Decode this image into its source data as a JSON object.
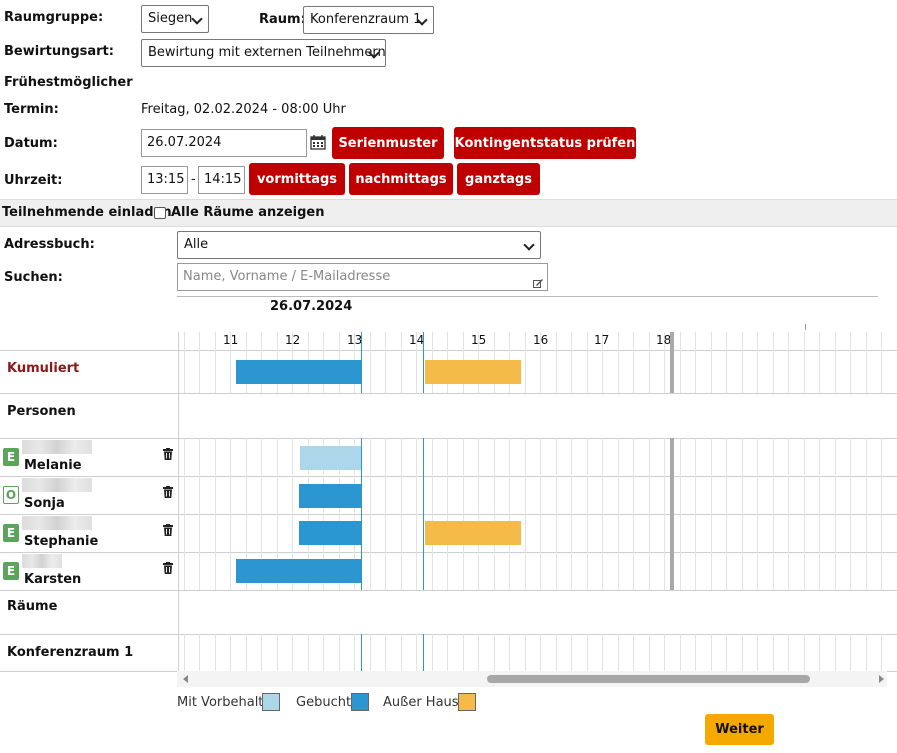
{
  "form": {
    "raumgruppe_label": "Raumgruppe:",
    "raumgruppe_value": "Siegen",
    "raum_label": "Raum:",
    "raum_value": "Konferenzraum 1",
    "bewirtung_label": "Bewirtungsart:",
    "bewirtung_value": "Bewirtung mit externen Teilnehmern",
    "fruehest_label": "Frühestmöglicher",
    "termin_label": "Termin:",
    "termin_value": "Freitag, 02.02.2024 - 08:00 Uhr",
    "datum_label": "Datum:",
    "datum_value": "26.07.2024",
    "uhrzeit_label": "Uhrzeit:",
    "time_from": "13:15",
    "time_sep": "-",
    "time_to": "14:15"
  },
  "buttons": {
    "serienmuster": "Serienmuster",
    "kontingent": "Kontingentstatus prüfen",
    "vormittags": "vormittags",
    "nachmittags": "nachmittags",
    "ganztags": "ganztags",
    "weiter": "Weiter"
  },
  "invite": {
    "title": "Teilnehmende einladen",
    "checkbox_label": "Alle Räume anzeigen",
    "adressbuch_label": "Adressbuch:",
    "adressbuch_value": "Alle",
    "suchen_label": "Suchen:",
    "suchen_placeholder": "Name, Vorname / E-Mailadresse"
  },
  "timeline": {
    "date": "26.07.2024",
    "hours": [
      "11",
      "12",
      "13",
      "14",
      "15",
      "16",
      "17",
      "18"
    ],
    "rows": {
      "kumuliert": "Kumuliert",
      "personen": "Personen",
      "raeume": "Räume",
      "konferenzraum": "Konferenzraum 1"
    },
    "persons": [
      {
        "badge": "E",
        "name": "Melanie"
      },
      {
        "badge": "O",
        "name": "Sonja"
      },
      {
        "badge": "E",
        "name": "Stephanie"
      },
      {
        "badge": "E",
        "name": "Karsten"
      }
    ]
  },
  "legend": {
    "mit_vorbehalt": "Mit Vorbehalt",
    "gebucht": "Gebucht",
    "ausser_haus": "Außer Haus"
  },
  "colors": {
    "accent_red": "#c00000",
    "gebucht": "#2b96cf",
    "mit_vorbehalt": "#acd6ea",
    "ausser_haus": "#f4bb48",
    "weiter": "#f5a800",
    "kumuliert_text": "#8b1a1a"
  }
}
